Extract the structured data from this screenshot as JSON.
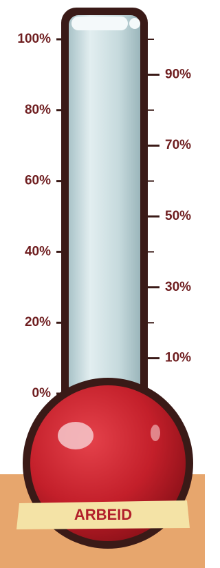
{
  "scale": {
    "left_labels": [
      "100%",
      "80%",
      "60%",
      "40%",
      "20%",
      "0%"
    ],
    "right_labels": [
      "90%",
      "70%",
      "50%",
      "30%",
      "10%"
    ]
  },
  "label": "ARBEID"
}
